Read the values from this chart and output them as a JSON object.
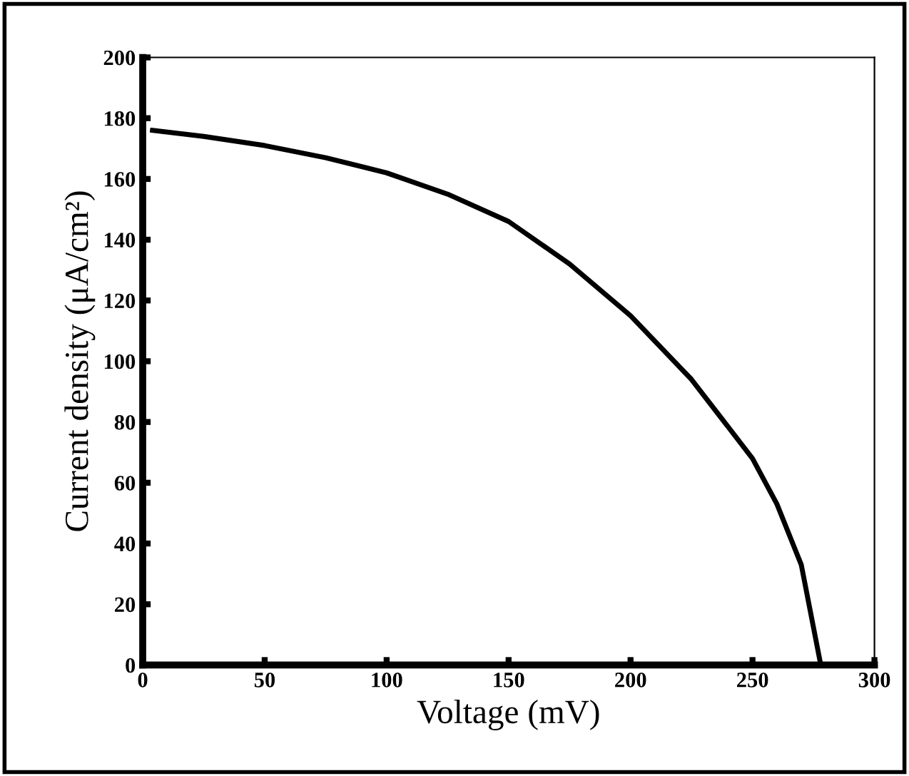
{
  "chart_data": {
    "type": "line",
    "xlabel": "Voltage (mV)",
    "ylabel": "Current density (μA/cm²)",
    "x": [
      4,
      25,
      50,
      75,
      100,
      125,
      150,
      175,
      200,
      225,
      250,
      260,
      270,
      278
    ],
    "series": [
      {
        "color": "#000000",
        "values": [
          176,
          174,
          171,
          167,
          162,
          155,
          146,
          132,
          115,
          94,
          68,
          53,
          33,
          0
        ]
      }
    ],
    "xlim": [
      0,
      300
    ],
    "ylim": [
      0,
      200
    ],
    "xticks": [
      0,
      50,
      100,
      150,
      200,
      250,
      300
    ],
    "yticks": [
      0,
      20,
      40,
      60,
      80,
      100,
      120,
      140,
      160,
      180,
      200
    ],
    "grid": false,
    "legend": false,
    "marker": "none",
    "line_style": "solid"
  }
}
